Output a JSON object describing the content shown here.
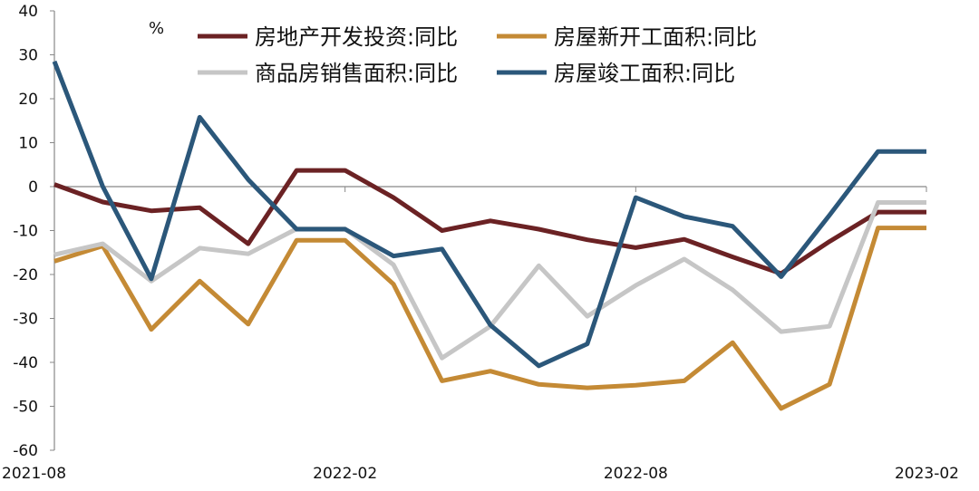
{
  "chart_data": {
    "type": "line",
    "unit": "%",
    "x": [
      "2021-08",
      "2021-09",
      "2021-10",
      "2021-11",
      "2021-12",
      "2022-01",
      "2022-02",
      "2022-03",
      "2022-04",
      "2022-05",
      "2022-06",
      "2022-07",
      "2022-08",
      "2022-09",
      "2022-10",
      "2022-11",
      "2022-12",
      "2023-01",
      "2023-02"
    ],
    "x_tick_labels": [
      "2021-08",
      "2022-02",
      "2022-08",
      "2023-02"
    ],
    "ylim": [
      -60,
      40
    ],
    "yticks": [
      "40",
      "30",
      "20",
      "10",
      "0",
      "-10",
      "-20",
      "-30",
      "-40",
      "-50",
      "-60"
    ],
    "grid": false,
    "legend_position": "top",
    "series": [
      {
        "name": "房地产开发投资:同比",
        "color": "#6b2224",
        "values": [
          0.5,
          -3.5,
          -5.5,
          -4.8,
          -13,
          3.7,
          3.7,
          -2.5,
          -10,
          -7.8,
          -9.7,
          -12.1,
          -13.9,
          -12,
          -16,
          -19.8,
          -12.5,
          -5.8,
          -5.8
        ]
      },
      {
        "name": "房屋新开工面积:同比",
        "color": "#c48a35",
        "values": [
          -17,
          -13.5,
          -32.5,
          -21.5,
          -31.3,
          -12.2,
          -12.2,
          -22.2,
          -44.2,
          -42,
          -45,
          -45.8,
          -45.2,
          -44.2,
          -35.5,
          -50.5,
          -45,
          -9.4,
          -9.4
        ]
      },
      {
        "name": "商品房销售面积:同比",
        "color": "#c6c6c6",
        "values": [
          -15.5,
          -13,
          -21.5,
          -14,
          -15.3,
          -9.6,
          -9.6,
          -17.8,
          -39,
          -31.8,
          -18,
          -29.5,
          -22.5,
          -16.5,
          -23.5,
          -33,
          -31.8,
          -3.6,
          -3.6
        ]
      },
      {
        "name": "房屋竣工面积:同比",
        "color": "#2b577a",
        "values": [
          28.5,
          0,
          -21,
          15.8,
          1.6,
          -9.7,
          -9.7,
          -15.8,
          -14.2,
          -31.5,
          -40.8,
          -35.8,
          -2.5,
          -6.8,
          -9,
          -20.5,
          -6.5,
          8,
          8
        ]
      }
    ]
  }
}
